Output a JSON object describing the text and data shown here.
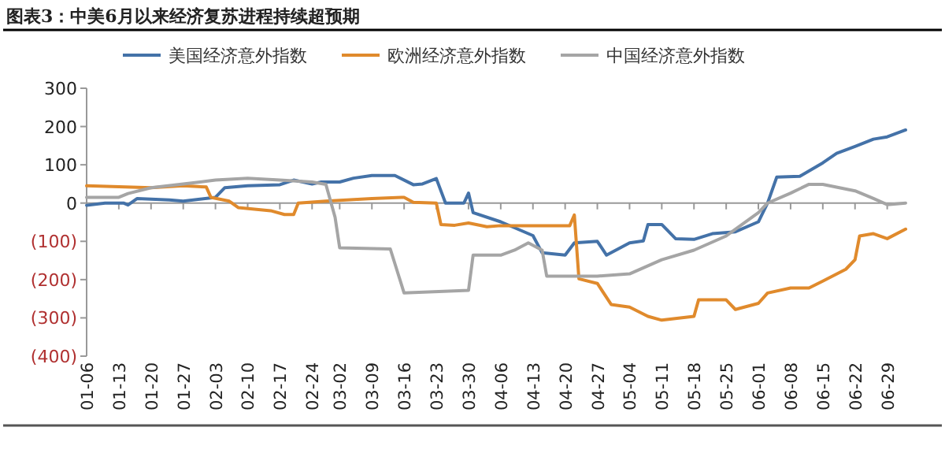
{
  "chart_data": {
    "type": "line",
    "title": "图表3：中美6月以来经济复苏进程持续超预期",
    "xlim": [
      "--01-06",
      "--07-03"
    ],
    "xticks": [
      {
        "value": "--01-06",
        "label": "01-06"
      },
      {
        "value": "--01-13",
        "label": "01-13"
      },
      {
        "value": "--01-20",
        "label": "01-20"
      },
      {
        "value": "--01-27",
        "label": "01-27"
      },
      {
        "value": "--02-03",
        "label": "02-03"
      },
      {
        "value": "--02-10",
        "label": "02-10"
      },
      {
        "value": "--02-17",
        "label": "02-17"
      },
      {
        "value": "--02-24",
        "label": "02-24"
      },
      {
        "value": "--03-02",
        "label": "03-02"
      },
      {
        "value": "--03-09",
        "label": "03-09"
      },
      {
        "value": "--03-16",
        "label": "03-16"
      },
      {
        "value": "--03-23",
        "label": "03-23"
      },
      {
        "value": "--03-30",
        "label": "03-30"
      },
      {
        "value": "--04-06",
        "label": "04-06"
      },
      {
        "value": "--04-13",
        "label": "04-13"
      },
      {
        "value": "--04-20",
        "label": "04-20"
      },
      {
        "value": "--04-27",
        "label": "04-27"
      },
      {
        "value": "--05-04",
        "label": "05-04"
      },
      {
        "value": "--05-11",
        "label": "05-11"
      },
      {
        "value": "--05-18",
        "label": "05-18"
      },
      {
        "value": "--05-25",
        "label": "05-25"
      },
      {
        "value": "--06-01",
        "label": "06-01"
      },
      {
        "value": "--06-08",
        "label": "06-08"
      },
      {
        "value": "--06-15",
        "label": "06-15"
      },
      {
        "value": "--06-22",
        "label": "06-22"
      },
      {
        "value": "--06-29",
        "label": "06-29"
      }
    ],
    "ylim": [
      -400,
      300
    ],
    "yticks": [
      300,
      200,
      100,
      0,
      {
        "value": -100,
        "label": "(100)"
      },
      {
        "value": -200,
        "label": "(200)"
      },
      {
        "value": -300,
        "label": "(300)"
      },
      {
        "value": -400,
        "label": "(400)"
      }
    ],
    "ref_lines": [
      {
        "axis": "y",
        "value": 0,
        "color": "#999999"
      }
    ],
    "legend": "top",
    "grid": false,
    "marker": "none",
    "line_style": "solid",
    "series": [
      {
        "name": "美国经济意外指数",
        "color": "#4472a8",
        "x": [
          "--01-06",
          "--01-10",
          "--01-14",
          "--01-15",
          "--01-17",
          "--01-24",
          "--01-27",
          "--02-03",
          "--02-05",
          "--02-10",
          "--02-17",
          "--02-20",
          "--02-24",
          "--02-26",
          "--03-02",
          "--03-05",
          "--03-09",
          "--03-14",
          "--03-18",
          "--03-20",
          "--03-23",
          "--03-25",
          "--03-29",
          "--03-30",
          "--03-31",
          "--04-06",
          "--04-13",
          "--04-15",
          "--04-20",
          "--04-22",
          "--04-27",
          "--04-29",
          "--05-04",
          "--05-07",
          "--05-08",
          "--05-11",
          "--05-14",
          "--05-18",
          "--05-22",
          "--05-27",
          "--06-01",
          "--06-03",
          "--06-05",
          "--06-10",
          "--06-15",
          "--06-18",
          "--06-22",
          "--06-26",
          "--06-29",
          "--07-03"
        ],
        "values": [
          -6,
          0,
          0,
          -5,
          12,
          8,
          5,
          15,
          40,
          45,
          48,
          60,
          50,
          55,
          55,
          65,
          72,
          72,
          48,
          50,
          64,
          0,
          0,
          26,
          -25,
          -49,
          -85,
          -130,
          -136,
          -104,
          -100,
          -136,
          -104,
          -99,
          -56,
          -56,
          -93,
          -95,
          -80,
          -75,
          -49,
          0,
          68,
          70,
          105,
          130,
          148,
          167,
          173,
          191
        ]
      },
      {
        "name": "欧洲经济意外指数",
        "color": "#e08a2c",
        "x": [
          "--01-06",
          "--01-20",
          "--01-27",
          "--02-01",
          "--02-02",
          "--02-06",
          "--02-08",
          "--02-15",
          "--02-18",
          "--02-20",
          "--02-21",
          "--02-27",
          "--03-09",
          "--03-16",
          "--03-18",
          "--03-23",
          "--03-24",
          "--03-27",
          "--03-30",
          "--04-03",
          "--04-06",
          "--04-21",
          "--04-22",
          "--04-23",
          "--04-27",
          "--04-30",
          "--05-04",
          "--05-08",
          "--05-11",
          "--05-18",
          "--05-19",
          "--05-25",
          "--05-27",
          "--06-01",
          "--06-03",
          "--06-08",
          "--06-12",
          "--06-15",
          "--06-20",
          "--06-22",
          "--06-23",
          "--06-26",
          "--06-29",
          "--07-03"
        ],
        "values": [
          45,
          40,
          45,
          42,
          15,
          5,
          -12,
          -20,
          -30,
          -30,
          0,
          5,
          12,
          15,
          2,
          0,
          -56,
          -58,
          -52,
          -62,
          -59,
          -59,
          -31,
          -198,
          -210,
          -265,
          -272,
          -296,
          -306,
          -296,
          -253,
          -253,
          -278,
          -262,
          -235,
          -222,
          -222,
          -204,
          -173,
          -148,
          -86,
          -80,
          -93,
          -68
        ]
      },
      {
        "name": "中国经济意外指数",
        "color": "#a5a5a5",
        "x": [
          "--01-06",
          "--01-13",
          "--01-15",
          "--01-20",
          "--01-27",
          "--02-03",
          "--02-10",
          "--02-17",
          "--02-24",
          "--02-27",
          "--03-01",
          "--03-02",
          "--03-13",
          "--03-16",
          "--03-30",
          "--03-31",
          "--04-06",
          "--04-09",
          "--04-12",
          "--04-15",
          "--04-16",
          "--04-27",
          "--05-04",
          "--05-11",
          "--05-18",
          "--05-25",
          "--06-01",
          "--06-03",
          "--06-08",
          "--06-12",
          "--06-15",
          "--06-22",
          "--06-26",
          "--06-29",
          "--07-03"
        ],
        "values": [
          15,
          15,
          25,
          40,
          50,
          60,
          65,
          60,
          55,
          49,
          -37,
          -117,
          -120,
          -235,
          -228,
          -136,
          -136,
          -123,
          -104,
          -123,
          -191,
          -191,
          -185,
          -148,
          -123,
          -86,
          -25,
          0,
          26,
          49,
          49,
          32,
          12,
          -4,
          0
        ]
      }
    ]
  }
}
